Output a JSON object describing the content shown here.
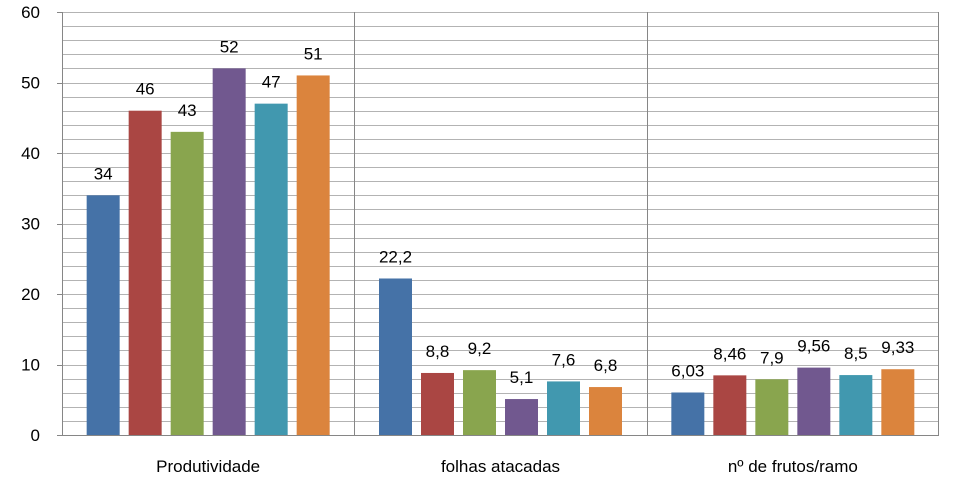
{
  "chart_data": {
    "type": "bar",
    "categories": [
      "Produtividade",
      "folhas atacadas",
      "nº de frutos/ramo"
    ],
    "series": [
      {
        "values": [
          34,
          22.2,
          6.03
        ],
        "labels": [
          "34",
          "22,2",
          "6,03"
        ],
        "color": "#4572A7"
      },
      {
        "values": [
          46,
          8.8,
          8.46
        ],
        "labels": [
          "46",
          "8,8",
          "8,46"
        ],
        "color": "#AA4643"
      },
      {
        "values": [
          43,
          9.2,
          7.9
        ],
        "labels": [
          "43",
          "9,2",
          "7,9"
        ],
        "color": "#89A54E"
      },
      {
        "values": [
          52,
          5.1,
          9.56
        ],
        "labels": [
          "52",
          "5,1",
          "9,56"
        ],
        "color": "#71588F"
      },
      {
        "values": [
          47,
          7.6,
          8.5
        ],
        "labels": [
          "47",
          "7,6",
          "8,5"
        ],
        "color": "#4198AF"
      },
      {
        "values": [
          51,
          6.8,
          9.33
        ],
        "labels": [
          "51",
          "6,8",
          "9,33"
        ],
        "color": "#DB843D"
      }
    ],
    "ylim": [
      0,
      60
    ],
    "yticks": [
      "0",
      "10",
      "20",
      "30",
      "40",
      "50",
      "60"
    ],
    "grid": true,
    "legend": "none"
  }
}
